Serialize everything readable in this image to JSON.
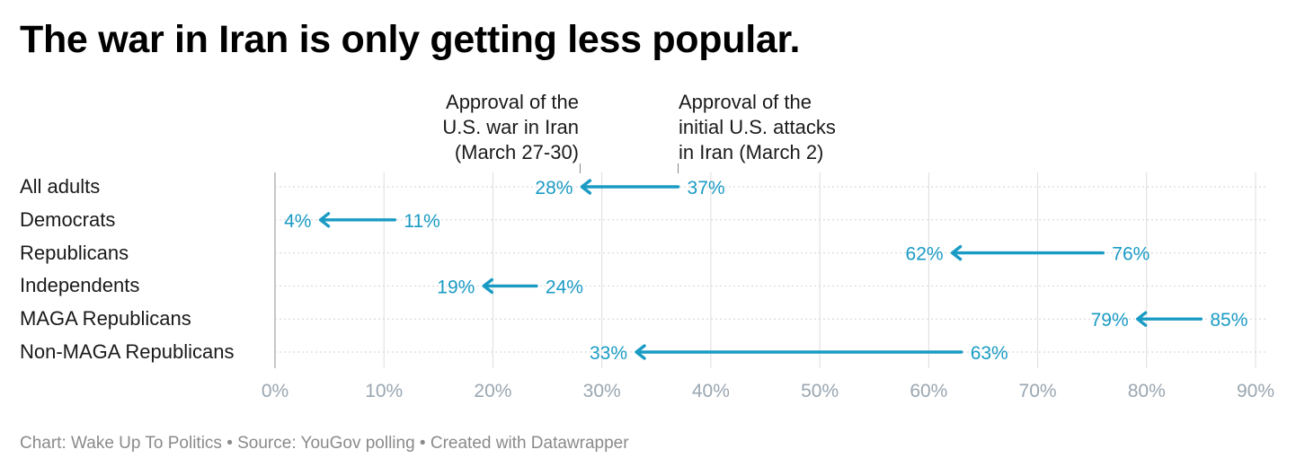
{
  "title": "The war in Iran is only getting less popular.",
  "footer": "Chart: Wake Up To Politics • Source: YouGov polling • Created with Datawrapper",
  "colors": {
    "accent": "#1a9bc4",
    "grid": "#dddddd",
    "axis_text": "#9aa6b0",
    "text": "#1a1a1a"
  },
  "chart_data": {
    "type": "arrow",
    "title": "The war in Iran is only getting less popular.",
    "series": [
      {
        "name": "Approval of the initial U.S. attacks in Iran (March 2)",
        "role": "start"
      },
      {
        "name": "Approval of the U.S. war in Iran (March 27-30)",
        "role": "end"
      }
    ],
    "annotations": {
      "end": "Approval of the\nU.S. war in Iran\n(March 27-30)",
      "start": "Approval of the\ninitial U.S. attacks\nin Iran (March 2)"
    },
    "categories": [
      "All adults",
      "Democrats",
      "Republicans",
      "Independents",
      "MAGA Republicans",
      "Non-MAGA Republicans"
    ],
    "start_values": [
      37,
      11,
      76,
      24,
      85,
      63
    ],
    "end_values": [
      28,
      4,
      62,
      19,
      79,
      33
    ],
    "start_labels": [
      "37%",
      "11%",
      "76%",
      "24%",
      "85%",
      "63%"
    ],
    "end_labels": [
      "28%",
      "4%",
      "62%",
      "19%",
      "79%",
      "33%"
    ],
    "xlim": [
      0,
      90
    ],
    "x_ticks": [
      0,
      10,
      20,
      30,
      40,
      50,
      60,
      70,
      80,
      90
    ],
    "x_tick_labels": [
      "0%",
      "10%",
      "20%",
      "30%",
      "40%",
      "50%",
      "60%",
      "70%",
      "80%",
      "90%"
    ],
    "xlabel": "",
    "ylabel": "",
    "grid": true
  }
}
